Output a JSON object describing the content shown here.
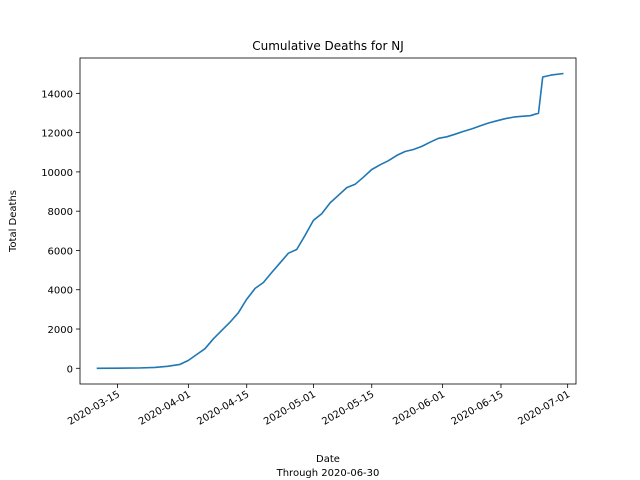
{
  "chart_data": {
    "type": "line",
    "title": "Cumulative Deaths for NJ",
    "xlabel": "Date",
    "xlabel_sub": "Through 2020-06-30",
    "ylabel": "Total Deaths",
    "grid": false,
    "legend": "none",
    "line_color": "#1f77b4",
    "xlim": [
      "2020-03-06",
      "2020-07-03"
    ],
    "ylim": [
      -800,
      15800
    ],
    "x_ticks": [
      "2020-03-15",
      "2020-04-01",
      "2020-04-15",
      "2020-05-01",
      "2020-05-15",
      "2020-06-01",
      "2020-06-15",
      "2020-07-01"
    ],
    "y_ticks": [
      0,
      2000,
      4000,
      6000,
      8000,
      10000,
      12000,
      14000
    ],
    "series": [
      {
        "x": [
          "2020-03-10",
          "2020-03-15",
          "2020-03-20",
          "2020-03-24",
          "2020-03-27",
          "2020-03-30",
          "2020-04-01",
          "2020-04-03",
          "2020-04-05",
          "2020-04-07",
          "2020-04-09",
          "2020-04-11",
          "2020-04-13",
          "2020-04-15",
          "2020-04-17",
          "2020-04-19",
          "2020-04-21",
          "2020-04-23",
          "2020-04-25",
          "2020-04-27",
          "2020-04-29",
          "2020-05-01",
          "2020-05-03",
          "2020-05-05",
          "2020-05-07",
          "2020-05-09",
          "2020-05-11",
          "2020-05-13",
          "2020-05-15",
          "2020-05-17",
          "2020-05-19",
          "2020-05-21",
          "2020-05-23",
          "2020-05-25",
          "2020-05-27",
          "2020-05-29",
          "2020-05-31",
          "2020-06-02",
          "2020-06-04",
          "2020-06-06",
          "2020-06-08",
          "2020-06-10",
          "2020-06-12",
          "2020-06-14",
          "2020-06-16",
          "2020-06-18",
          "2020-06-20",
          "2020-06-22",
          "2020-06-24",
          "2020-06-25",
          "2020-06-27",
          "2020-06-30"
        ],
        "y": [
          1,
          3,
          16,
          44,
          100,
          200,
          400,
          700,
          1000,
          1500,
          1930,
          2350,
          2830,
          3520,
          4070,
          4370,
          4880,
          5370,
          5860,
          6050,
          6770,
          7530,
          7870,
          8420,
          8810,
          9200,
          9370,
          9730,
          10120,
          10360,
          10570,
          10840,
          11040,
          11140,
          11300,
          11510,
          11710,
          11790,
          11920,
          12060,
          12190,
          12340,
          12490,
          12600,
          12710,
          12790,
          12830,
          12860,
          12990,
          14830,
          14930,
          15010
        ]
      }
    ]
  }
}
